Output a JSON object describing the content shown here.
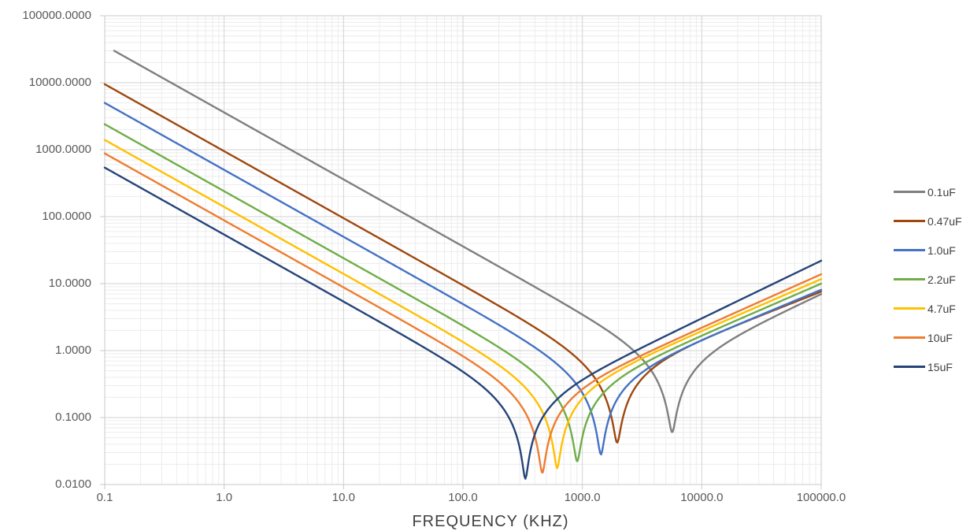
{
  "chart_data": {
    "type": "line",
    "title": "",
    "xlabel": "FREQUENCY (KHZ)",
    "ylabel": "",
    "legend_position": "right",
    "grid": {
      "major": true,
      "minor": true
    },
    "x_axis": {
      "scale": "log",
      "min_khz": 0.1,
      "max_khz": 100000,
      "tick_labels": [
        "0.1",
        "1.0",
        "10.0",
        "100.0",
        "1000.0",
        "10000.0",
        "100000.0"
      ]
    },
    "y_axis": {
      "scale": "log",
      "min_ohms": 0.01,
      "max_ohms": 100000,
      "tick_labels": [
        "0.0100",
        "0.1000",
        "1.0000",
        "10.0000",
        "100.0000",
        "1000.0000",
        "10000.0000",
        "100000.0000"
      ]
    },
    "series": [
      {
        "label": "0.1uF",
        "color": "#7F7F7F",
        "capacitance_uf": 0.1,
        "f_start_khz": 0.12,
        "impedance_at_0p1khz_ohms": 36000,
        "resonance_khz": 5650,
        "min_impedance_ohms": 0.06,
        "impedance_at_100000khz_ohms": 7.0
      },
      {
        "label": "0.47uF",
        "color": "#9E480E",
        "capacitance_uf": 0.47,
        "f_start_khz": 0.1,
        "impedance_at_0p1khz_ohms": 9500,
        "resonance_khz": 1955,
        "min_impedance_ohms": 0.042,
        "impedance_at_100000khz_ohms": 7.6
      },
      {
        "label": "1.0uF",
        "color": "#4472C4",
        "capacitance_uf": 1.0,
        "f_start_khz": 0.1,
        "impedance_at_0p1khz_ohms": 5000,
        "resonance_khz": 1430,
        "min_impedance_ohms": 0.028,
        "impedance_at_100000khz_ohms": 8.1
      },
      {
        "label": "2.2uF",
        "color": "#70AD47",
        "capacitance_uf": 2.2,
        "f_start_khz": 0.1,
        "impedance_at_0p1khz_ohms": 2400,
        "resonance_khz": 905,
        "min_impedance_ohms": 0.022,
        "impedance_at_100000khz_ohms": 10.0
      },
      {
        "label": "4.7uF",
        "color": "#FFC000",
        "capacitance_uf": 4.7,
        "f_start_khz": 0.1,
        "impedance_at_0p1khz_ohms": 1400,
        "resonance_khz": 615,
        "min_impedance_ohms": 0.0175,
        "impedance_at_100000khz_ohms": 11.7
      },
      {
        "label": "10uF",
        "color": "#ED7D31",
        "capacitance_uf": 10,
        "f_start_khz": 0.1,
        "impedance_at_0p1khz_ohms": 880,
        "resonance_khz": 462,
        "min_impedance_ohms": 0.0148,
        "impedance_at_100000khz_ohms": 13.8
      },
      {
        "label": "15uF",
        "color": "#264478",
        "capacitance_uf": 15,
        "f_start_khz": 0.1,
        "impedance_at_0p1khz_ohms": 540,
        "resonance_khz": 333,
        "min_impedance_ohms": 0.0122,
        "impedance_at_100000khz_ohms": 22.0
      }
    ],
    "colors": {
      "tick_text": "#595959",
      "axis_title_text": "#404040",
      "major_grid": "#D2D2D2",
      "minor_grid": "#ECECEC",
      "plot_border": "#C9C9C9"
    }
  }
}
